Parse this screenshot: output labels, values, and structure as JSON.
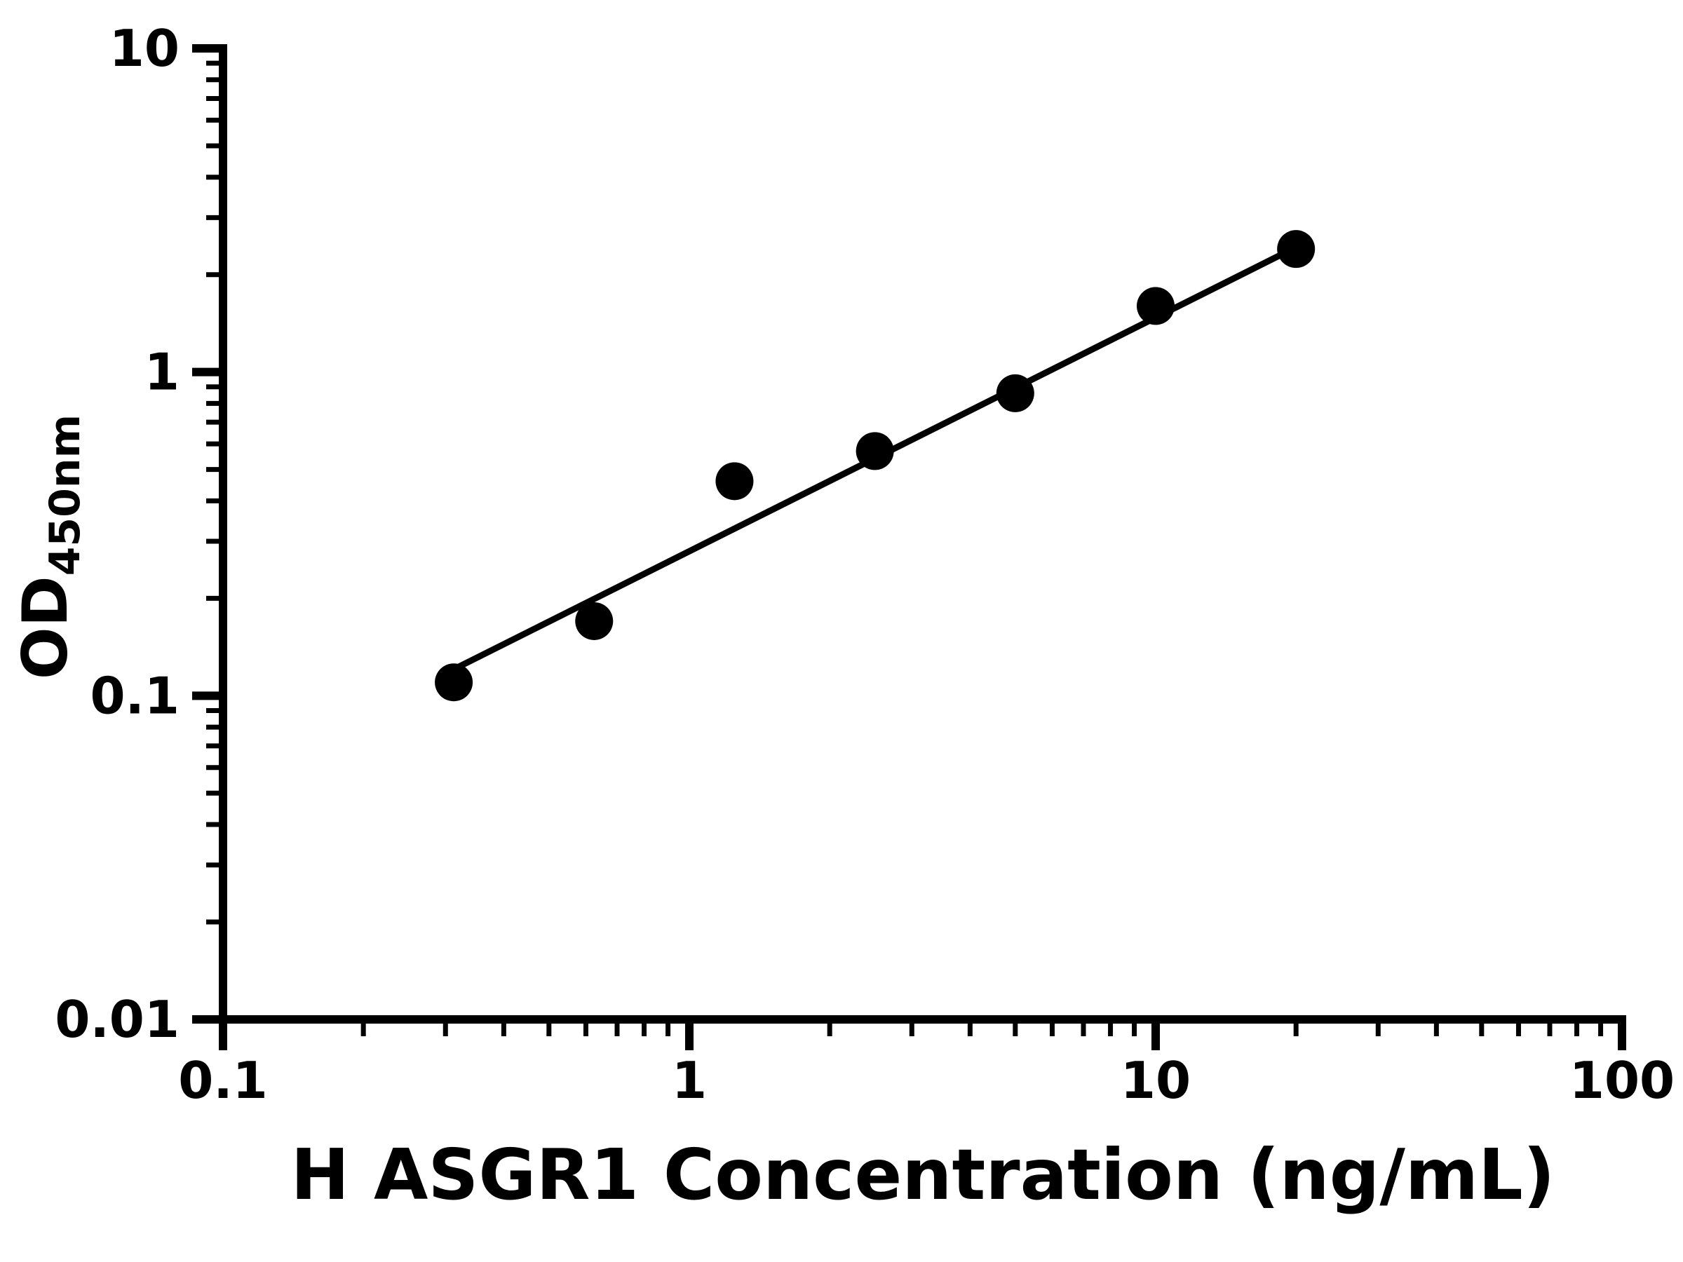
{
  "chart_data": {
    "type": "scatter",
    "xlabel": "H ASGR1 Concentration (ng/mL)",
    "ylabel_main": "OD",
    "ylabel_sub": "450nm",
    "x_scale": "log",
    "y_scale": "log",
    "xlim": [
      0.1,
      100
    ],
    "ylim": [
      0.01,
      10
    ],
    "x_ticks": [
      0.1,
      1,
      10,
      100
    ],
    "x_tick_labels": [
      "0.1",
      "1",
      "10",
      "100"
    ],
    "y_ticks": [
      0.01,
      0.1,
      1,
      10
    ],
    "y_tick_labels": [
      "0.01",
      "0.1",
      "1",
      "10"
    ],
    "grid": "off",
    "legend": "none",
    "points": [
      {
        "x": 0.3125,
        "y": 0.11
      },
      {
        "x": 0.625,
        "y": 0.17
      },
      {
        "x": 1.25,
        "y": 0.46
      },
      {
        "x": 2.5,
        "y": 0.57
      },
      {
        "x": 5,
        "y": 0.86
      },
      {
        "x": 10,
        "y": 1.6
      },
      {
        "x": 20,
        "y": 2.4
      }
    ],
    "trend_line": {
      "x1": 0.31,
      "y1": 0.12,
      "x2": 20.8,
      "y2": 2.5
    },
    "colors": {
      "points": "#000000",
      "line": "#000000",
      "axis": "#000000",
      "background": "#ffffff"
    }
  }
}
